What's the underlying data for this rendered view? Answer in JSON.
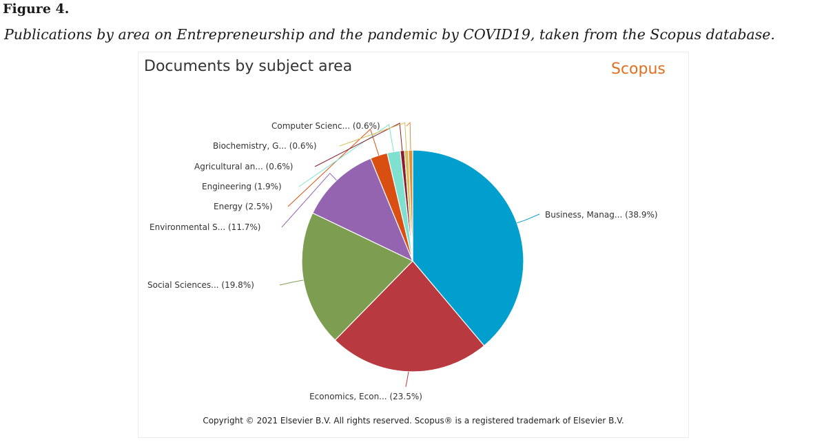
{
  "figure": {
    "label": "Figure 4.",
    "caption": "Publications by area on Entrepreneurship and the pandemic by COVID19, taken from the Scopus database."
  },
  "panel": {
    "title": "Documents by subject area",
    "brand": "Scopus",
    "copyright": "Copyright © 2021 Elsevier B.V. All rights reserved. Scopus® is a registered trademark of Elsevier B.V."
  },
  "chart_data": {
    "type": "pie",
    "title": "Documents by subject area",
    "slices": [
      {
        "label": "Business, Manag... (38.9%)",
        "value": 38.9,
        "color": "#009fce"
      },
      {
        "label": "Economics, Econ... (23.5%)",
        "value": 23.5,
        "color": "#b83a40"
      },
      {
        "label": "Social Sciences... (19.8%)",
        "value": 19.8,
        "color": "#7d9d50"
      },
      {
        "label": "Environmental S... (11.7%)",
        "value": 11.7,
        "color": "#9464b0"
      },
      {
        "label": "Energy (2.5%)",
        "value": 2.5,
        "color": "#d94f12"
      },
      {
        "label": "Engineering (1.9%)",
        "value": 1.9,
        "color": "#7fe0cf"
      },
      {
        "label": "Agricultural an... (0.6%)",
        "value": 0.6,
        "color": "#8b1e2b"
      },
      {
        "label": "Biochemistry, G... (0.6%)",
        "value": 0.6,
        "color": "#d9bd5a"
      },
      {
        "label": "Computer Scienc... (0.6%)",
        "value": 0.6,
        "color": "#e08e3a"
      }
    ]
  }
}
